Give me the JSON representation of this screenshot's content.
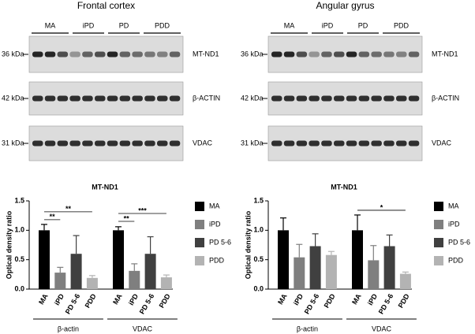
{
  "blots": [
    {
      "title": "Frontal cortex",
      "groups": [
        "MA",
        "iPD",
        "PD",
        "PDD"
      ],
      "rows": [
        {
          "size": "36 kDa",
          "protein": "MT-ND1"
        },
        {
          "size": "42 kDa",
          "protein": "β-ACTIN"
        },
        {
          "size": "31 kDa",
          "protein": "VDAC"
        }
      ]
    },
    {
      "title": "Angular gyrus",
      "groups": [
        "MA",
        "iPD",
        "PD",
        "PDD"
      ],
      "rows": [
        {
          "size": "36 kDa",
          "protein": "MT-ND1"
        },
        {
          "size": "42 kDa",
          "protein": "β-ACTIN"
        },
        {
          "size": "31 kDa",
          "protein": "VDAC"
        }
      ]
    }
  ],
  "chart_data": [
    {
      "type": "bar",
      "title": "MT-ND1",
      "y_label": "Optical density ratio",
      "categories": [
        "β-actin",
        "VDAC"
      ],
      "series": [
        {
          "name": "MA",
          "color": "#000000",
          "values": [
            1.0,
            1.0
          ],
          "errors": [
            0.1,
            0.06
          ]
        },
        {
          "name": "iPD",
          "color": "#7f7f7f",
          "values": [
            0.28,
            0.31
          ],
          "errors": [
            0.09,
            0.12
          ]
        },
        {
          "name": "PD 5-6",
          "color": "#404040",
          "values": [
            0.6,
            0.6
          ],
          "errors": [
            0.31,
            0.29
          ]
        },
        {
          "name": "PDD",
          "color": "#b3b3b3",
          "values": [
            0.19,
            0.2
          ],
          "errors": [
            0.04,
            0.04
          ]
        }
      ],
      "ylim": [
        0,
        1.5
      ],
      "yticks": [
        {
          "value": 0,
          "label": "0.0"
        },
        0.5,
        {
          "value": 1,
          "label": "1.0"
        },
        1.5
      ],
      "annotations": [
        {
          "text": "**",
          "category": 0,
          "pair": [
            0,
            1
          ]
        },
        {
          "text": "**",
          "category": 0,
          "pair": [
            0,
            3
          ]
        },
        {
          "text": "**",
          "category": 1,
          "pair": [
            0,
            1
          ]
        },
        {
          "text": "***",
          "category": 1,
          "pair": [
            0,
            3
          ]
        }
      ]
    },
    {
      "type": "bar",
      "title": "MT-ND1",
      "y_label": "Optical density ratio",
      "categories": [
        "β-actin",
        "VDAC"
      ],
      "series": [
        {
          "name": "MA",
          "color": "#000000",
          "values": [
            1.0,
            1.0
          ],
          "errors": [
            0.21,
            0.26
          ]
        },
        {
          "name": "iPD",
          "color": "#7f7f7f",
          "values": [
            0.54,
            0.49
          ],
          "errors": [
            0.22,
            0.25
          ]
        },
        {
          "name": "PD 5-6",
          "color": "#404040",
          "values": [
            0.73,
            0.73
          ],
          "errors": [
            0.21,
            0.19
          ]
        },
        {
          "name": "PDD",
          "color": "#b3b3b3",
          "values": [
            0.58,
            0.26
          ],
          "errors": [
            0.06,
            0.03
          ]
        }
      ],
      "ylim": [
        0,
        1.5
      ],
      "yticks": [
        {
          "value": 0,
          "label": "0.0"
        },
        0.5,
        {
          "value": 1,
          "label": "1.0"
        },
        1.5
      ],
      "annotations": [
        {
          "text": "*",
          "category": 1,
          "pair": [
            0,
            3
          ]
        }
      ]
    }
  ]
}
